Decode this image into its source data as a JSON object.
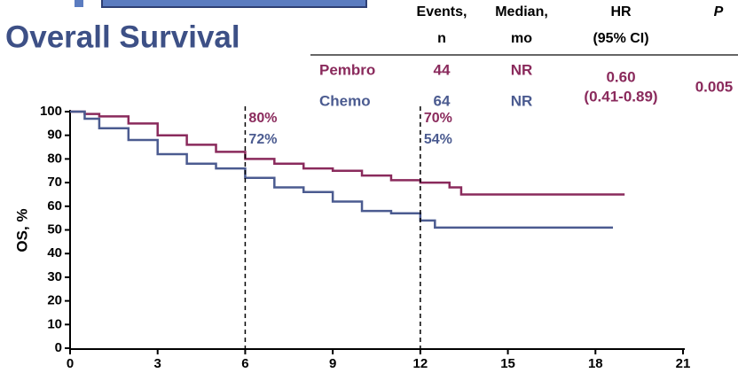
{
  "chart_data": {
    "type": "step-line",
    "title": "Overall Survival",
    "ylabel": "OS, %",
    "xlim": [
      0,
      21
    ],
    "xticks": [
      0,
      3,
      6,
      9,
      12,
      15,
      18,
      21
    ],
    "ylim": [
      0,
      100
    ],
    "yticks": [
      0,
      10,
      20,
      30,
      40,
      50,
      60,
      70,
      80,
      90,
      100
    ],
    "series": [
      {
        "name": "Pembro",
        "color": "#8a2a5c",
        "x": [
          0,
          0.5,
          1,
          2,
          3,
          4,
          5,
          6,
          7,
          8,
          9,
          10,
          11,
          12,
          13,
          13.4,
          19
        ],
        "values": [
          100,
          99,
          98,
          95,
          90,
          86,
          83,
          80,
          78,
          76,
          75,
          73,
          71,
          70,
          68,
          65,
          65
        ]
      },
      {
        "name": "Chemo",
        "color": "#4b5b90",
        "x": [
          0,
          0.5,
          1,
          2,
          3,
          4,
          5,
          6,
          7,
          8,
          9,
          10,
          11,
          12,
          12.5,
          18.6
        ],
        "values": [
          100,
          97,
          93,
          88,
          82,
          78,
          76,
          72,
          68,
          66,
          62,
          58,
          57,
          54,
          51,
          51
        ]
      }
    ],
    "annotations": [
      {
        "x": 6,
        "labels": [
          {
            "text": "80%",
            "series": 0
          },
          {
            "text": "72%",
            "series": 1
          }
        ]
      },
      {
        "x": 12,
        "labels": [
          {
            "text": "70%",
            "series": 0
          },
          {
            "text": "54%",
            "series": 1
          }
        ]
      }
    ]
  },
  "table": {
    "headers": [
      [
        "Events,",
        "n"
      ],
      [
        "Median,",
        "mo"
      ],
      [
        "HR",
        "(95% CI)"
      ],
      [
        "P"
      ]
    ],
    "rows": [
      {
        "name": "Pembro",
        "events": 44,
        "median": "NR"
      },
      {
        "name": "Chemo",
        "events": 64,
        "median": "NR"
      }
    ],
    "hr": [
      "0.60",
      "(0.41-0.89)"
    ],
    "p": "0.005"
  }
}
